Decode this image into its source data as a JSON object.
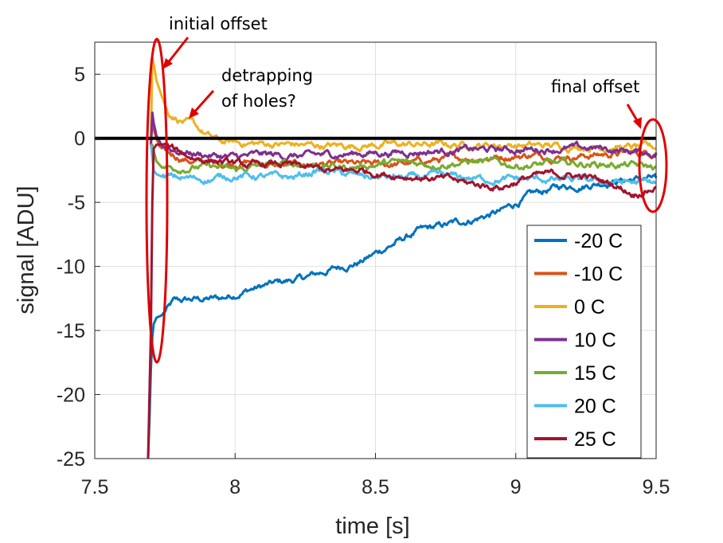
{
  "chart_data": {
    "type": "line",
    "xlabel": "time [s]",
    "ylabel": "signal [ADU]",
    "xlim": [
      7.5,
      9.5
    ],
    "ylim": [
      -25,
      7.5
    ],
    "xticks": [
      7.5,
      8,
      8.5,
      9,
      9.5
    ],
    "xtick_labels": [
      "7.5",
      "8",
      "8.5",
      "9",
      "9.5"
    ],
    "yticks": [
      -25,
      -20,
      -15,
      -10,
      -5,
      0,
      5
    ],
    "ytick_labels": [
      "-25",
      "-20",
      "-15",
      "-10",
      "-5",
      "0",
      "5"
    ],
    "grid": true,
    "zero_line": 0,
    "legend_position": "bottom-right",
    "series": [
      {
        "name": "-20 C",
        "color": "#0072BD",
        "x": [
          7.69,
          7.695,
          7.7,
          7.705,
          7.71,
          7.72,
          7.74,
          7.78,
          7.85,
          7.95,
          8.05,
          8.15,
          8.25,
          8.35,
          8.45,
          8.55,
          8.65,
          8.75,
          8.85,
          8.95,
          9.05,
          9.15,
          9.25,
          9.35,
          9.5
        ],
        "y": [
          -25,
          -22,
          -18,
          -15.5,
          -14.5,
          -14.0,
          -13.8,
          -12.8,
          -12.6,
          -12.5,
          -11.8,
          -11.3,
          -10.9,
          -10.2,
          -9.6,
          -8.4,
          -7.3,
          -6.8,
          -6.3,
          -5.7,
          -4.5,
          -3.8,
          -3.6,
          -3.3,
          -3.1
        ]
      },
      {
        "name": "-10 C",
        "color": "#D95319",
        "x": [
          7.7,
          7.705,
          7.715,
          7.73,
          7.76,
          7.85,
          7.95,
          8.05,
          8.15,
          8.3,
          8.45,
          8.6,
          8.75,
          8.9,
          9.05,
          9.2,
          9.35,
          9.5
        ],
        "y": [
          -0.5,
          1.2,
          0.3,
          -0.6,
          -1.2,
          -1.8,
          -2.0,
          -1.8,
          -2.2,
          -2.0,
          -2.1,
          -2.0,
          -1.6,
          -1.5,
          -1.3,
          -1.4,
          -1.2,
          -1.1
        ]
      },
      {
        "name": "0 C",
        "color": "#EDB120",
        "x": [
          7.7,
          7.705,
          7.71,
          7.72,
          7.74,
          7.76,
          7.8,
          7.85,
          7.9,
          7.95,
          8.05,
          8.2,
          8.35,
          8.5,
          8.65,
          8.8,
          8.95,
          9.1,
          9.25,
          9.4,
          9.5
        ],
        "y": [
          -0.5,
          6.3,
          5.8,
          4.5,
          3.2,
          2.0,
          1.5,
          1.0,
          0.2,
          -0.3,
          -0.4,
          -0.5,
          -0.6,
          -0.5,
          -0.5,
          -0.5,
          -0.5,
          -0.6,
          -0.6,
          -0.7,
          -0.8
        ]
      },
      {
        "name": "10 C",
        "color": "#7E2F8E",
        "x": [
          7.7,
          7.705,
          7.71,
          7.72,
          7.74,
          7.8,
          7.9,
          8.0,
          8.1,
          8.25,
          8.4,
          8.55,
          8.7,
          8.85,
          9.0,
          9.15,
          9.3,
          9.4,
          9.5
        ],
        "y": [
          -0.5,
          2.0,
          1.2,
          0.2,
          -0.6,
          -1.0,
          -1.3,
          -1.5,
          -1.3,
          -1.4,
          -1.2,
          -1.1,
          -1.0,
          -0.9,
          -0.9,
          -0.8,
          -0.8,
          -1.0,
          -1.2
        ]
      },
      {
        "name": "15 C",
        "color": "#77AC30",
        "x": [
          7.7,
          7.705,
          7.71,
          7.72,
          7.74,
          7.8,
          7.9,
          8.0,
          8.1,
          8.25,
          8.4,
          8.55,
          8.7,
          8.85,
          9.0,
          9.15,
          9.3,
          9.4,
          9.5
        ],
        "y": [
          -0.5,
          -0.5,
          -1.0,
          -1.8,
          -2.3,
          -2.3,
          -2.2,
          -2.5,
          -2.1,
          -2.0,
          -2.3,
          -1.9,
          -2.0,
          -1.8,
          -2.1,
          -2.0,
          -2.0,
          -2.1,
          -2.3
        ]
      },
      {
        "name": "20 C",
        "color": "#4DBEEE",
        "x": [
          7.7,
          7.705,
          7.71,
          7.72,
          7.74,
          7.8,
          7.9,
          8.0,
          8.1,
          8.2,
          8.3,
          8.45,
          8.6,
          8.75,
          8.9,
          9.05,
          9.2,
          9.35,
          9.5
        ],
        "y": [
          -0.5,
          -1.5,
          -2.5,
          -2.8,
          -3.0,
          -3.1,
          -3.2,
          -2.9,
          -3.0,
          -3.1,
          -2.5,
          -3.0,
          -3.1,
          -3.0,
          -3.2,
          -3.2,
          -3.3,
          -3.4,
          -3.5
        ]
      },
      {
        "name": "25 C",
        "color": "#A2142F",
        "x": [
          7.69,
          7.695,
          7.7,
          7.705,
          7.71,
          7.72,
          7.74,
          7.78,
          7.85,
          7.95,
          8.05,
          8.15,
          8.25,
          8.35,
          8.45,
          8.55,
          8.65,
          8.75,
          8.85,
          8.95,
          9.05,
          9.15,
          9.25,
          9.35,
          9.42,
          9.5
        ],
        "y": [
          -25,
          -20,
          -15,
          -5,
          -0.8,
          -0.5,
          -0.5,
          -0.9,
          -1.5,
          -1.8,
          -2.2,
          -2.0,
          -2.3,
          -2.6,
          -2.5,
          -2.8,
          -3.0,
          -3.2,
          -3.6,
          -3.8,
          -3.0,
          -2.8,
          -3.0,
          -3.6,
          -4.3,
          -3.8
        ]
      }
    ],
    "annotations": [
      {
        "text": "initial offset"
      },
      {
        "text": "detrapping"
      },
      {
        "text": "of holes?"
      },
      {
        "text": "final offset"
      }
    ],
    "annotation_color": "#E00000"
  }
}
